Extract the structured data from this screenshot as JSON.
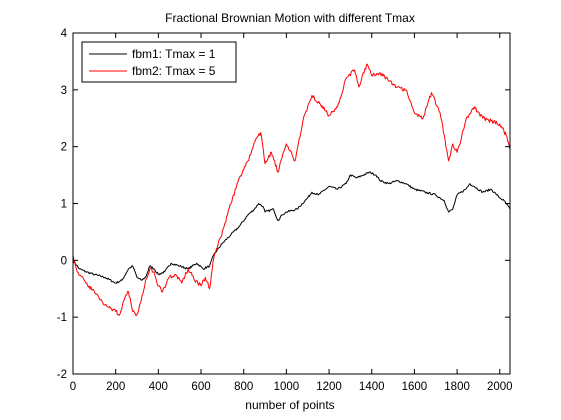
{
  "chart_data": {
    "type": "line",
    "title": "Fractional Brownian Motion with different Tmax",
    "xlabel": "number of points",
    "ylabel": "",
    "xlim": [
      0,
      2048
    ],
    "ylim": [
      -2,
      4
    ],
    "xticks": [
      0,
      200,
      400,
      600,
      800,
      1000,
      1200,
      1400,
      1600,
      1800,
      2000
    ],
    "yticks": [
      -2,
      -1,
      0,
      1,
      2,
      3,
      4
    ],
    "grid": false,
    "legend_position": "top-left",
    "series": [
      {
        "name": "fbm1: Tmax = 1",
        "color": "#000000",
        "x": [
          0,
          30,
          60,
          100,
          150,
          200,
          230,
          260,
          280,
          300,
          320,
          340,
          360,
          380,
          400,
          430,
          460,
          500,
          540,
          580,
          610,
          640,
          660,
          700,
          740,
          780,
          820,
          850,
          870,
          890,
          900,
          940,
          960,
          980,
          1000,
          1050,
          1100,
          1120,
          1150,
          1200,
          1240,
          1280,
          1300,
          1330,
          1360,
          1390,
          1420,
          1440,
          1480,
          1520,
          1560,
          1600,
          1650,
          1700,
          1740,
          1760,
          1780,
          1800,
          1840,
          1860,
          1880,
          1920,
          1960,
          2000,
          2020,
          2048
        ],
        "y": [
          0.0,
          -0.15,
          -0.2,
          -0.25,
          -0.3,
          -0.4,
          -0.35,
          -0.15,
          -0.1,
          -0.3,
          -0.35,
          -0.3,
          -0.1,
          -0.15,
          -0.25,
          -0.2,
          -0.05,
          -0.1,
          -0.15,
          -0.05,
          -0.15,
          -0.1,
          0.1,
          0.3,
          0.45,
          0.6,
          0.8,
          0.9,
          1.0,
          0.95,
          0.85,
          0.9,
          0.7,
          0.8,
          0.85,
          0.9,
          1.1,
          1.2,
          1.15,
          1.3,
          1.25,
          1.35,
          1.5,
          1.45,
          1.5,
          1.55,
          1.5,
          1.4,
          1.35,
          1.4,
          1.35,
          1.25,
          1.2,
          1.15,
          1.05,
          0.85,
          0.9,
          1.15,
          1.25,
          1.35,
          1.3,
          1.2,
          1.25,
          1.1,
          1.05,
          0.9
        ]
      },
      {
        "name": "fbm2: Tmax = 5",
        "color": "#ff0000",
        "x": [
          0,
          20,
          60,
          100,
          140,
          180,
          200,
          220,
          240,
          260,
          280,
          300,
          320,
          340,
          360,
          380,
          400,
          420,
          450,
          480,
          510,
          540,
          570,
          600,
          620,
          640,
          660,
          700,
          740,
          780,
          820,
          860,
          880,
          900,
          930,
          960,
          1000,
          1040,
          1080,
          1120,
          1160,
          1200,
          1240,
          1280,
          1320,
          1340,
          1360,
          1380,
          1400,
          1440,
          1480,
          1520,
          1560,
          1600,
          1640,
          1680,
          1720,
          1740,
          1760,
          1780,
          1800,
          1820,
          1840,
          1880,
          1920,
          1960,
          2000,
          2030,
          2048
        ],
        "y": [
          0.1,
          -0.2,
          -0.4,
          -0.55,
          -0.75,
          -0.85,
          -0.9,
          -0.95,
          -0.7,
          -0.55,
          -0.9,
          -0.95,
          -0.7,
          -0.35,
          -0.15,
          -0.2,
          -0.45,
          -0.55,
          -0.3,
          -0.25,
          -0.4,
          -0.15,
          -0.35,
          -0.45,
          -0.3,
          -0.5,
          0.05,
          0.5,
          1.0,
          1.45,
          1.75,
          2.15,
          2.25,
          1.7,
          1.9,
          1.55,
          2.05,
          1.75,
          2.5,
          2.9,
          2.75,
          2.55,
          2.7,
          3.2,
          3.35,
          3.05,
          3.3,
          3.45,
          3.25,
          3.3,
          3.15,
          3.05,
          3.0,
          2.6,
          2.5,
          2.95,
          2.6,
          2.2,
          1.75,
          2.05,
          1.9,
          2.15,
          2.45,
          2.7,
          2.5,
          2.45,
          2.4,
          2.2,
          1.95
        ]
      }
    ]
  }
}
